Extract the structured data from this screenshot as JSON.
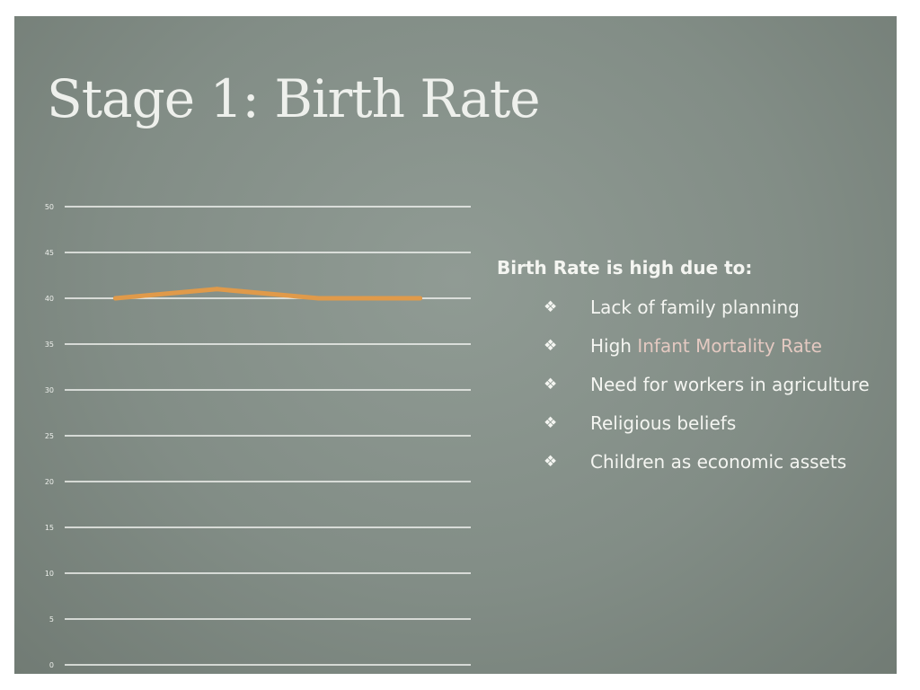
{
  "title": "Stage 1: Birth Rate",
  "panel": {
    "heading": "Birth Rate is high due to:",
    "bullet_icon": "diamond-bullet-icon",
    "items": [
      {
        "text": "Lack of family planning"
      },
      {
        "prefix": "High ",
        "highlight": "Infant Mortality Rate"
      },
      {
        "text": "Need for workers in agriculture"
      },
      {
        "text": "Religious beliefs"
      },
      {
        "text": "Children as economic assets"
      }
    ]
  },
  "colors": {
    "background": "#838e87",
    "gridline": "#f4f5f2",
    "line": "#e09a4a",
    "highlight_text": "#e4c9c1"
  },
  "chart_data": {
    "type": "line",
    "title": "",
    "xlabel": "",
    "ylabel": "",
    "ylim": [
      0,
      50
    ],
    "y_ticks": [
      0,
      5,
      10,
      15,
      20,
      25,
      30,
      35,
      40,
      45,
      50
    ],
    "x": [
      1,
      2,
      3,
      4
    ],
    "xlim": [
      0.5,
      4.5
    ],
    "grid": true,
    "series": [
      {
        "values": [
          40,
          41,
          40,
          40
        ],
        "color": "#e09a4a"
      }
    ]
  }
}
